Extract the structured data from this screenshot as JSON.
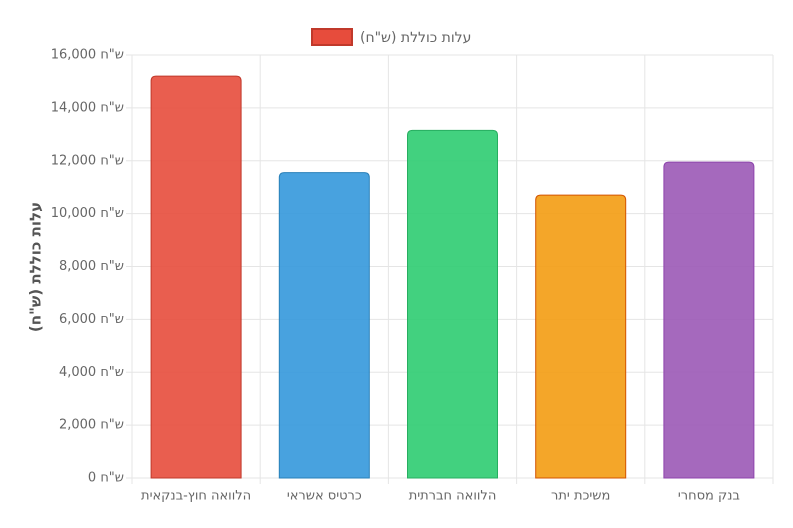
{
  "chart_data": {
    "type": "bar",
    "y_label": "עלות כוללת (ש\"ח)",
    "categories": [
      "הלוואה חוץ-בנקאית",
      "כרטיס אשראי",
      "הלוואה חברתית",
      "משיכת יתר",
      "בנק מסחרי"
    ],
    "series": [
      {
        "name": "עלות כוללת (ש\"ח)",
        "color": "#e74c3c",
        "border_color": "#c0392b",
        "colors": [
          "#e74c3c",
          "#3498db",
          "#2ecc71",
          "#f39c12",
          "#9b59b6"
        ],
        "border_colors": [
          "#c0392b",
          "#2980b9",
          "#27ae60",
          "#d35400",
          "#8e44ad"
        ],
        "values": [
          15200,
          11550,
          13150,
          10700,
          11950
        ]
      }
    ],
    "ylim": [
      0,
      16000
    ],
    "yticks": [
      {
        "value": 0,
        "label": "0 ש\"ח"
      },
      {
        "value": 2000,
        "label": "2,000 ש\"ח"
      },
      {
        "value": 4000,
        "label": "4,000 ש\"ח"
      },
      {
        "value": 6000,
        "label": "6,000 ש\"ח"
      },
      {
        "value": 8000,
        "label": "8,000 ש\"ח"
      },
      {
        "value": 10000,
        "label": "10,000 ש\"ח"
      },
      {
        "value": 12000,
        "label": "12,000 ש\"ח"
      },
      {
        "value": 14000,
        "label": "14,000 ש\"ח"
      },
      {
        "value": 16000,
        "label": "16,000 ש\"ח"
      }
    ],
    "grid": true,
    "legend": "top"
  }
}
